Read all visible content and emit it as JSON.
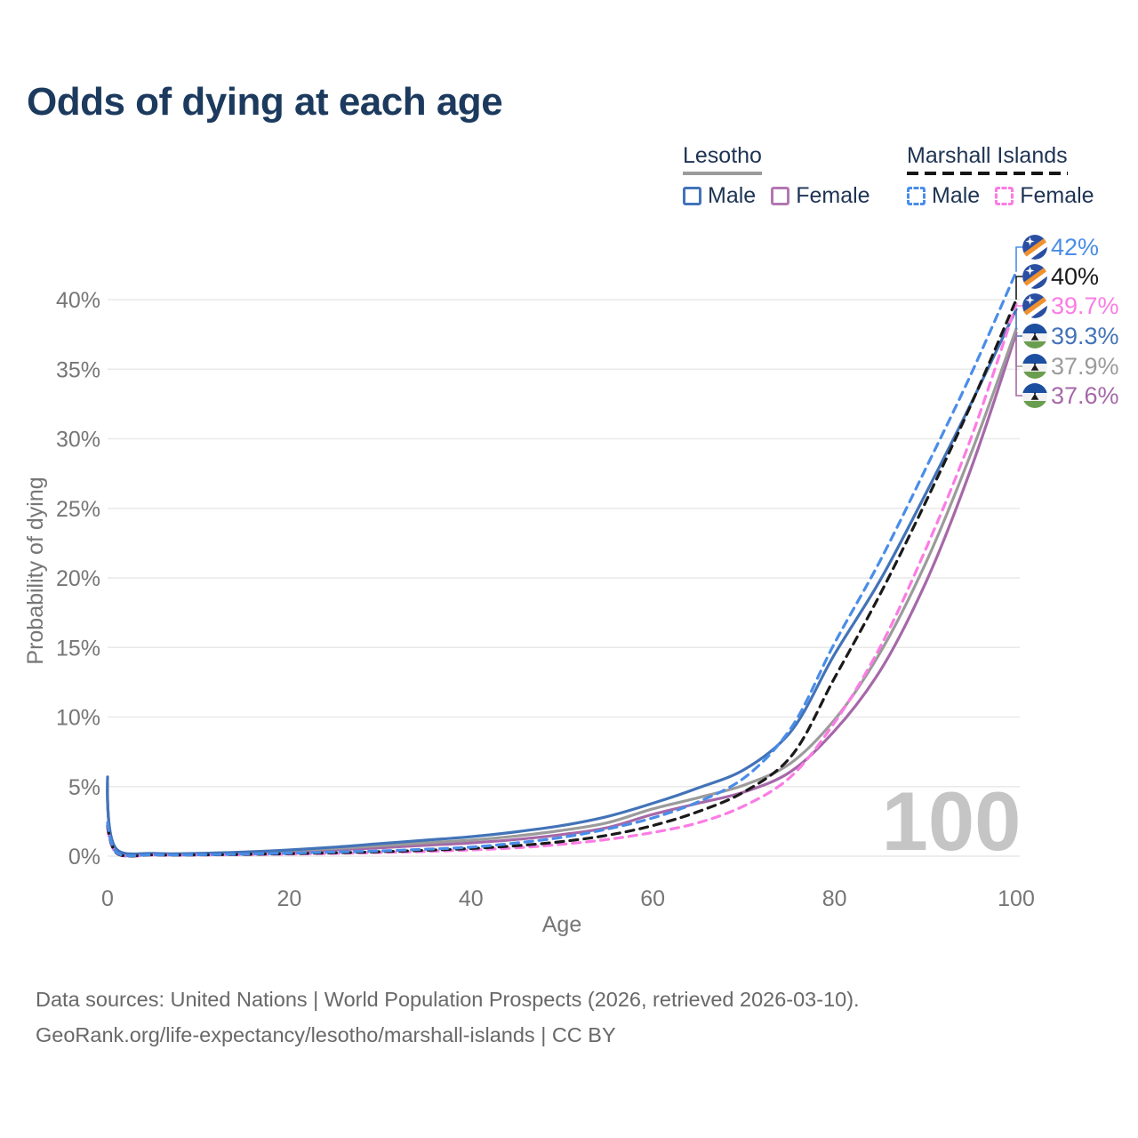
{
  "title": "Odds of dying at each age",
  "legend": {
    "groups": [
      {
        "id": "lesotho",
        "label": "Lesotho",
        "line_style": "solid",
        "line_color": "#9b9b9b",
        "items": [
          {
            "label": "Male",
            "color": "#4273b8",
            "style": "solid"
          },
          {
            "label": "Female",
            "color": "#b277b2",
            "style": "solid"
          }
        ]
      },
      {
        "id": "marshall-islands",
        "label": "Marshall Islands",
        "line_style": "dashed",
        "line_color": "#161616",
        "items": [
          {
            "label": "Male",
            "color": "#4a8de8",
            "style": "dashed"
          },
          {
            "label": "Female",
            "color": "#fb7ce4",
            "style": "dashed"
          }
        ]
      }
    ]
  },
  "chart_data": {
    "type": "line",
    "title": "Odds of dying at each age",
    "xlabel": "Age",
    "ylabel": "Probability of dying",
    "x_ticks": [
      0,
      20,
      40,
      60,
      80,
      100
    ],
    "x_tick_labels": [
      "0",
      "20",
      "40",
      "60",
      "80",
      "100"
    ],
    "y_ticks_pct": [
      0,
      5,
      10,
      15,
      20,
      25,
      30,
      35,
      40
    ],
    "y_tick_labels": [
      "0%",
      "5%",
      "10%",
      "15%",
      "20%",
      "25%",
      "30%",
      "35%",
      "40%"
    ],
    "xlim": [
      0,
      100
    ],
    "ylim_pct": [
      0,
      45
    ],
    "grid": "horizontal",
    "ages": [
      0,
      1,
      5,
      10,
      15,
      20,
      25,
      30,
      35,
      40,
      45,
      50,
      55,
      60,
      65,
      70,
      75,
      80,
      85,
      90,
      95,
      100
    ],
    "series": [
      {
        "id": "marshall-islands-male",
        "country": "Marshall Islands",
        "sex": "Male",
        "color": "#4a8de8",
        "dash": true,
        "flag": "marshall-islands",
        "end_label": "42%",
        "end_label_color": "#4a8de8",
        "values_pct": [
          2.4,
          0.25,
          0.1,
          0.1,
          0.15,
          0.22,
          0.3,
          0.38,
          0.5,
          0.65,
          0.95,
          1.35,
          1.95,
          2.75,
          3.9,
          5.6,
          9.0,
          15.3,
          21.2,
          27.8,
          34.6,
          42.0
        ]
      },
      {
        "id": "marshall-islands-both",
        "country": "Marshall Islands",
        "sex": "Both sexes",
        "color": "#1a1a1a",
        "dash": true,
        "flag": "marshall-islands",
        "end_label": "40%",
        "end_label_color": "#1a1a1a",
        "values_pct": [
          2.2,
          0.22,
          0.09,
          0.09,
          0.13,
          0.18,
          0.24,
          0.32,
          0.42,
          0.55,
          0.75,
          1.05,
          1.5,
          2.2,
          3.2,
          4.6,
          7.0,
          12.8,
          18.8,
          25.4,
          32.4,
          40.0
        ]
      },
      {
        "id": "marshall-islands-female",
        "country": "Marshall Islands",
        "sex": "Female",
        "color": "#fb7ce4",
        "dash": true,
        "flag": "marshall-islands",
        "end_label": "39.7%",
        "end_label_color": "#fb7ce4",
        "values_pct": [
          2.0,
          0.2,
          0.08,
          0.08,
          0.11,
          0.15,
          0.2,
          0.26,
          0.34,
          0.45,
          0.6,
          0.85,
          1.2,
          1.7,
          2.4,
          3.6,
          5.6,
          9.6,
          15.0,
          22.0,
          30.0,
          39.7
        ]
      },
      {
        "id": "lesotho-male",
        "country": "Lesotho",
        "sex": "Male",
        "color": "#4273b8",
        "dash": false,
        "flag": "lesotho",
        "end_label": "39.3%",
        "end_label_color": "#4273b8",
        "values_pct": [
          5.7,
          0.5,
          0.2,
          0.2,
          0.3,
          0.45,
          0.65,
          0.9,
          1.15,
          1.4,
          1.75,
          2.2,
          2.85,
          3.8,
          4.9,
          6.2,
          8.8,
          14.5,
          19.8,
          26.0,
          32.5,
          39.3
        ]
      },
      {
        "id": "lesotho-both",
        "country": "Lesotho",
        "sex": "Both sexes",
        "color": "#9b9b9b",
        "dash": false,
        "flag": "lesotho",
        "end_label": "37.9%",
        "end_label_color": "#9b9b9b",
        "values_pct": [
          5.2,
          0.45,
          0.18,
          0.18,
          0.26,
          0.4,
          0.55,
          0.75,
          0.95,
          1.15,
          1.45,
          1.85,
          2.4,
          3.4,
          4.2,
          5.1,
          6.6,
          9.8,
          14.6,
          21.0,
          28.9,
          37.9
        ]
      },
      {
        "id": "lesotho-female",
        "country": "Lesotho",
        "sex": "Female",
        "color": "#a668a8",
        "dash": false,
        "flag": "lesotho",
        "end_label": "37.6%",
        "end_label_color": "#a668a8",
        "values_pct": [
          4.8,
          0.4,
          0.15,
          0.15,
          0.22,
          0.32,
          0.45,
          0.6,
          0.78,
          0.95,
          1.2,
          1.55,
          2.05,
          3.0,
          3.8,
          4.6,
          6.0,
          9.0,
          13.3,
          19.6,
          27.8,
          37.6
        ]
      }
    ]
  },
  "watermark": "100",
  "footer": {
    "line1": "Data sources: United Nations | World Population Prospects (2026, retrieved 2026-03-10).",
    "line2": "GeoRank.org/life-expectancy/lesotho/marshall-islands | CC BY"
  }
}
